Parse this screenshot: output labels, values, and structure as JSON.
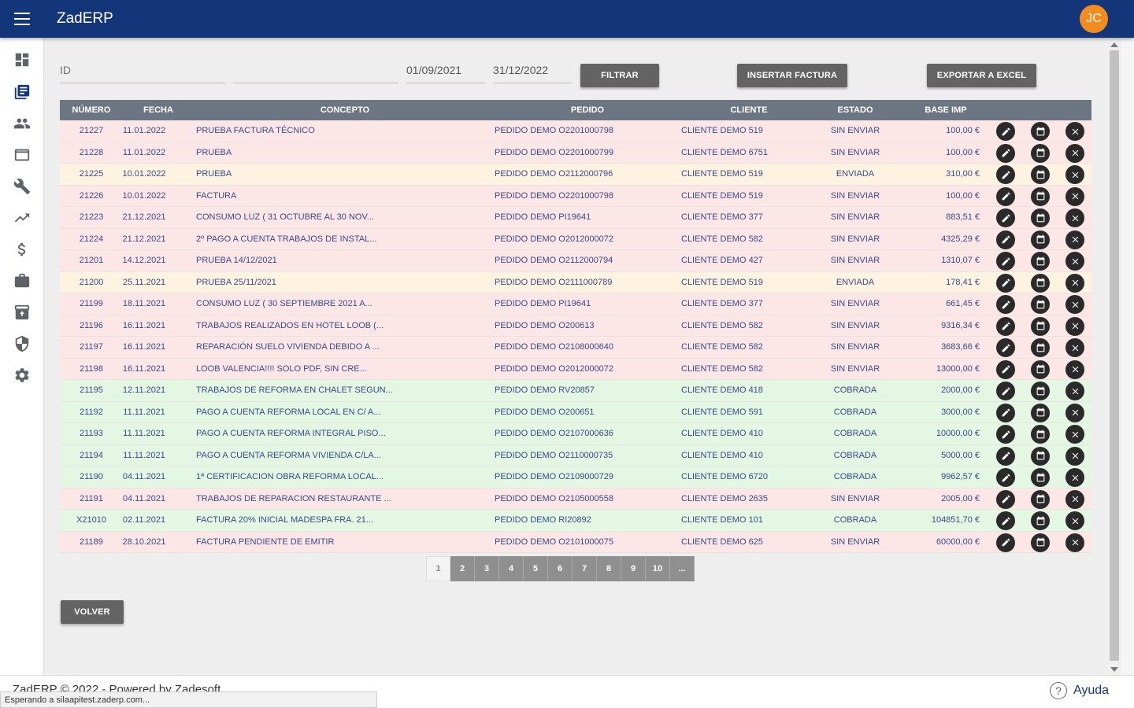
{
  "app": {
    "title": "ZadERP",
    "user_initials": "JC"
  },
  "filters": {
    "id_placeholder": "ID",
    "second_value": "",
    "date_from": "01/09/2021",
    "date_to": "31/12/2022",
    "filter_label": "FILTRAR",
    "insert_label": "INSERTAR FACTURA",
    "export_label": "EXPORTAR A EXCEL"
  },
  "table": {
    "headers": {
      "numero": "NÚMERO",
      "fecha": "FECHA",
      "concepto": "CONCEPTO",
      "pedido": "PEDIDO",
      "cliente": "CLIENTE",
      "estado": "ESTADO",
      "base": "BASE IMP"
    },
    "rows": [
      {
        "numero": "21227",
        "fecha": "11.01.2022",
        "concepto": "PRUEBA FACTURA TÉCNICO",
        "pedido": "PEDIDO DEMO O2201000798",
        "cliente": "CLIENTE DEMO 519",
        "estado": "SIN ENVIAR",
        "base": "100,00 €",
        "tone": "red"
      },
      {
        "numero": "21228",
        "fecha": "11.01.2022",
        "concepto": "PRUEBA",
        "pedido": "PEDIDO DEMO O2201000799",
        "cliente": "CLIENTE DEMO 6751",
        "estado": "SIN ENVIAR",
        "base": "100,00 €",
        "tone": "red"
      },
      {
        "numero": "21225",
        "fecha": "10.01.2022",
        "concepto": "PRUEBA",
        "pedido": "PEDIDO DEMO O2112000796",
        "cliente": "CLIENTE DEMO 519",
        "estado": "ENVIADA",
        "base": "310,00 €",
        "tone": "yellow"
      },
      {
        "numero": "21226",
        "fecha": "10.01.2022",
        "concepto": "FACTURA",
        "pedido": "PEDIDO DEMO O2201000798",
        "cliente": "CLIENTE DEMO 519",
        "estado": "SIN ENVIAR",
        "base": "100,00 €",
        "tone": "red"
      },
      {
        "numero": "21223",
        "fecha": "21.12.2021",
        "concepto": "CONSUMO LUZ ( 31 OCTUBRE AL 30 NOV...",
        "pedido": "PEDIDO DEMO PI19641",
        "cliente": "CLIENTE DEMO 377",
        "estado": "SIN ENVIAR",
        "base": "883,51 €",
        "tone": "red"
      },
      {
        "numero": "21224",
        "fecha": "21.12.2021",
        "concepto": "2º PAGO A CUENTA TRABAJOS DE INSTAL...",
        "pedido": "PEDIDO DEMO O2012000072",
        "cliente": "CLIENTE DEMO 582",
        "estado": "SIN ENVIAR",
        "base": "4325,29 €",
        "tone": "red"
      },
      {
        "numero": "21201",
        "fecha": "14.12.2021",
        "concepto": "PRUEBA 14/12/2021",
        "pedido": "PEDIDO DEMO O2112000794",
        "cliente": "CLIENTE DEMO 427",
        "estado": "SIN ENVIAR",
        "base": "1310,07 €",
        "tone": "red"
      },
      {
        "numero": "21200",
        "fecha": "25.11.2021",
        "concepto": "PRUEBA 25/11/2021",
        "pedido": "PEDIDO DEMO O2111000789",
        "cliente": "CLIENTE DEMO 519",
        "estado": "ENVIADA",
        "base": "178,41 €",
        "tone": "yellow"
      },
      {
        "numero": "21199",
        "fecha": "18.11.2021",
        "concepto": "CONSUMO LUZ ( 30 SEPTIEMBRE 2021 A...",
        "pedido": "PEDIDO DEMO PI19641",
        "cliente": "CLIENTE DEMO 377",
        "estado": "SIN ENVIAR",
        "base": "661,45 €",
        "tone": "red"
      },
      {
        "numero": "21196",
        "fecha": "16.11.2021",
        "concepto": "TRABAJOS REALIZADOS EN HOTEL LOOB (...",
        "pedido": "PEDIDO DEMO O200613",
        "cliente": "CLIENTE DEMO 582",
        "estado": "SIN ENVIAR",
        "base": "9316,34 €",
        "tone": "red"
      },
      {
        "numero": "21197",
        "fecha": "16.11.2021",
        "concepto": "REPARACIÓN SUELO VIVIENDA DEBIDO A ...",
        "pedido": "PEDIDO DEMO O2108000640",
        "cliente": "CLIENTE DEMO 582",
        "estado": "SIN ENVIAR",
        "base": "3683,66 €",
        "tone": "red"
      },
      {
        "numero": "21198",
        "fecha": "16.11.2021",
        "concepto": "LOOB VALENCIA!!!! SOLO PDF, SIN CRE...",
        "pedido": "PEDIDO DEMO O2012000072",
        "cliente": "CLIENTE DEMO 582",
        "estado": "SIN ENVIAR",
        "base": "13000,00 €",
        "tone": "red"
      },
      {
        "numero": "21195",
        "fecha": "12.11.2021",
        "concepto": "TRABAJOS DE REFORMA EN CHALET SEGUN...",
        "pedido": "PEDIDO DEMO RV20857",
        "cliente": "CLIENTE DEMO 418",
        "estado": "COBRADA",
        "base": "2000,00 €",
        "tone": "green"
      },
      {
        "numero": "21192",
        "fecha": "11.11.2021",
        "concepto": "PAGO A CUENTA REFORMA LOCAL EN C/ A...",
        "pedido": "PEDIDO DEMO O200651",
        "cliente": "CLIENTE DEMO 591",
        "estado": "COBRADA",
        "base": "3000,00 €",
        "tone": "green"
      },
      {
        "numero": "21193",
        "fecha": "11.11.2021",
        "concepto": "PAGO A CUENTA REFORMA INTEGRAL PISO...",
        "pedido": "PEDIDO DEMO O2107000636",
        "cliente": "CLIENTE DEMO 410",
        "estado": "COBRADA",
        "base": "10000,00 €",
        "tone": "green"
      },
      {
        "numero": "21194",
        "fecha": "11.11.2021",
        "concepto": "PAGO A CUENTA REFORMA VIVIENDA C/LA...",
        "pedido": "PEDIDO DEMO O2110000735",
        "cliente": "CLIENTE DEMO 410",
        "estado": "COBRADA",
        "base": "5000,00 €",
        "tone": "green"
      },
      {
        "numero": "21190",
        "fecha": "04.11.2021",
        "concepto": "1ª CERTIFICACION OBRA REFORMA LOCAL...",
        "pedido": "PEDIDO DEMO O2109000729",
        "cliente": "CLIENTE DEMO 6720",
        "estado": "COBRADA",
        "base": "9962,57 €",
        "tone": "green"
      },
      {
        "numero": "21191",
        "fecha": "04.11.2021",
        "concepto": "TRABAJOS DE REPARACION RESTAURANTE ...",
        "pedido": "PEDIDO DEMO O2105000558",
        "cliente": "CLIENTE DEMO 2635",
        "estado": "SIN ENVIAR",
        "base": "2005,00 €",
        "tone": "red"
      },
      {
        "numero": "X21010",
        "fecha": "02.11.2021",
        "concepto": "FACTURA 20% INICIAL MADESPA FRA. 21...",
        "pedido": "PEDIDO DEMO RI20892",
        "cliente": "CLIENTE DEMO 101",
        "estado": "COBRADA",
        "base": "104851,70 €",
        "tone": "green"
      },
      {
        "numero": "21189",
        "fecha": "28.10.2021",
        "concepto": "FACTURA PENDIENTE DE EMITIR",
        "pedido": "PEDIDO DEMO O2101000075",
        "cliente": "CLIENTE DEMO 625",
        "estado": "SIN ENVIAR",
        "base": "60000,00 €",
        "tone": "red"
      }
    ]
  },
  "pagination": {
    "pages": [
      "1",
      "2",
      "3",
      "4",
      "5",
      "6",
      "7",
      "8",
      "9",
      "10",
      "..."
    ],
    "current": "1"
  },
  "volver_label": "VOLVER",
  "footer": {
    "text": "ZadERP © 2022 - Powered by Zadesoft",
    "help_label": "Ayuda",
    "help_icon_glyph": "?"
  },
  "status_bar": "Esperando a silaapitest.zaderp.com...",
  "colors": {
    "header": "#13357a",
    "avatar": "#f28c1e",
    "row_red": "#fde6e6",
    "row_yellow": "#fdf3e0",
    "row_green": "#e3f7e3"
  }
}
